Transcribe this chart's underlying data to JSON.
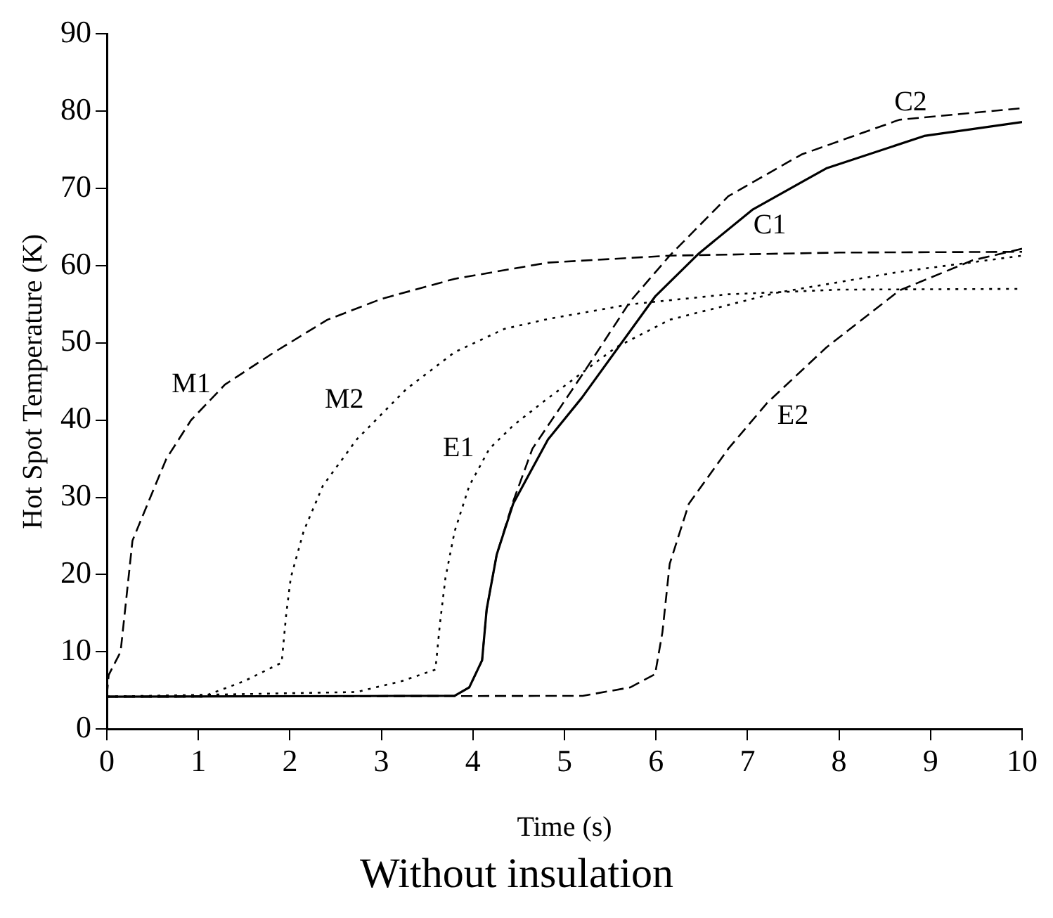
{
  "chart_data": {
    "type": "line",
    "title": "Without insulation",
    "xlabel": "Time (s)",
    "ylabel": "Hot Spot Temperature (K)",
    "xlim": [
      0,
      10
    ],
    "ylim": [
      0,
      90
    ],
    "xticks": [
      0,
      1,
      2,
      3,
      4,
      5,
      6,
      7,
      8,
      9,
      10
    ],
    "yticks": [
      0,
      10,
      20,
      30,
      40,
      50,
      60,
      70,
      80,
      90
    ],
    "grid": false,
    "legend": false,
    "marker": "none",
    "series": [
      {
        "name": "M1",
        "color": "#000000",
        "line_style": "dashed",
        "x": [
          0,
          0.02,
          0.15,
          0.2,
          0.28,
          0.44,
          0.65,
          0.92,
          1.29,
          1.83,
          2.41,
          3.0,
          3.8,
          4.82,
          6.15,
          8,
          10
        ],
        "values": [
          4.3,
          7,
          10,
          15.5,
          24.4,
          29,
          35,
          40,
          44.6,
          48.8,
          53,
          55.7,
          58.3,
          60.4,
          61.3,
          61.7,
          61.8
        ]
      },
      {
        "name": "M2",
        "color": "#000000",
        "line_style": "dotted",
        "x": [
          0,
          1.05,
          1.5,
          1.91,
          1.96,
          2.01,
          2.15,
          2.36,
          2.73,
          3.27,
          3.8,
          4.34,
          4.82,
          5.72,
          6.79,
          8,
          10
        ],
        "values": [
          4.2,
          4.2,
          6.2,
          8.6,
          14.9,
          19.6,
          25.6,
          31.5,
          37.5,
          44,
          48.8,
          51.8,
          53.1,
          55,
          56.3,
          56.9,
          57
        ]
      },
      {
        "name": "E1",
        "color": "#000000",
        "line_style": "dotted",
        "x": [
          0,
          2.73,
          3.22,
          3.59,
          3.64,
          3.7,
          3.8,
          3.96,
          4.18,
          4.44,
          4.76,
          5.56,
          6.15,
          7.32,
          8.66,
          10
        ],
        "values": [
          4.2,
          4.8,
          6.2,
          7.7,
          13.7,
          19.6,
          25.6,
          31.5,
          36.3,
          39.3,
          42.3,
          49.4,
          53,
          56.5,
          59.2,
          61.3
        ]
      },
      {
        "name": "C1",
        "color": "#000000",
        "line_style": "solid",
        "x": [
          0,
          3.8,
          3.96,
          4.1,
          4.15,
          4.26,
          4.44,
          4.82,
          5.19,
          5.99,
          6.47,
          7.06,
          7.86,
          8.93,
          10
        ],
        "values": [
          4.2,
          4.3,
          5.4,
          8.9,
          15.5,
          22.6,
          29.2,
          37.5,
          42.9,
          56,
          61.6,
          67.3,
          72.6,
          76.8,
          78.6
        ]
      },
      {
        "name": "C2",
        "color": "#000000",
        "line_style": "dashed",
        "x": [
          0,
          3.8,
          3.96,
          4.1,
          4.15,
          4.26,
          4.44,
          4.65,
          5.19,
          5.72,
          6.15,
          6.79,
          7.59,
          8.66,
          10
        ],
        "values": [
          4.2,
          4.3,
          5.4,
          8.9,
          15.5,
          22.6,
          29.5,
          36.3,
          45.8,
          55.4,
          61.3,
          69,
          74.4,
          78.9,
          80.4
        ]
      },
      {
        "name": "E2",
        "color": "#000000",
        "line_style": "dashed",
        "x": [
          0,
          5.2,
          5.72,
          5.99,
          6.07,
          6.15,
          6.36,
          6.79,
          7.22,
          7.86,
          8.66,
          9.46,
          10
        ],
        "values": [
          4.2,
          4.3,
          5.4,
          7.1,
          12.5,
          21.4,
          29.2,
          36.3,
          42.3,
          49.4,
          56.8,
          60.7,
          62.2
        ]
      }
    ]
  }
}
